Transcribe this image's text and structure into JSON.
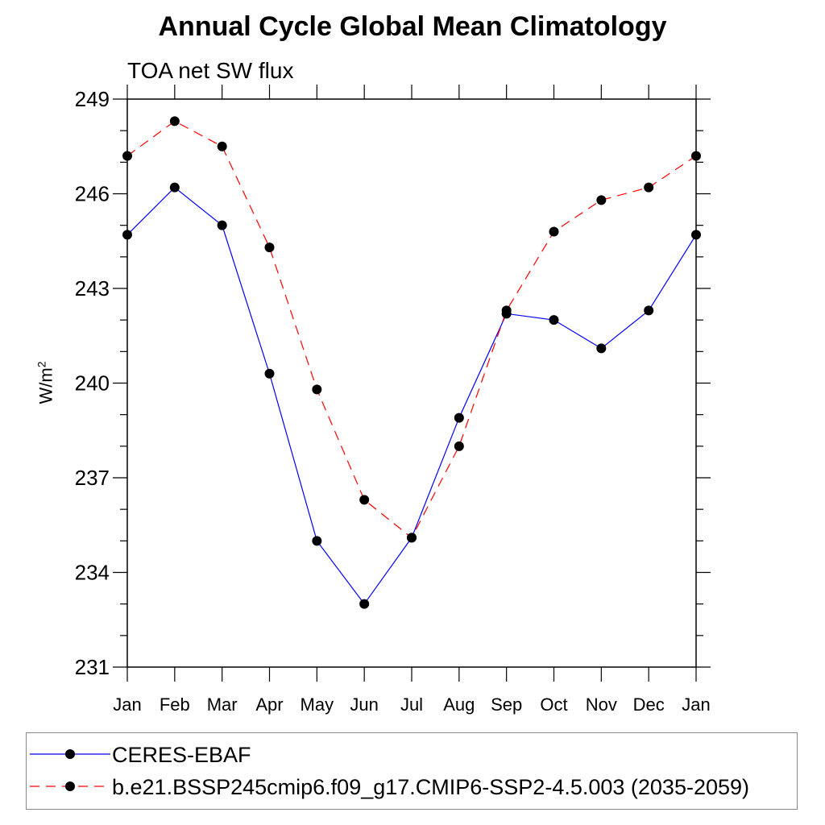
{
  "chart_data": {
    "type": "line",
    "title": "Annual Cycle Global Mean Climatology",
    "subtitle": "TOA net SW flux",
    "ylabel": "W/m",
    "ylabel_sup": "2",
    "xlabel": "",
    "ylim": [
      231,
      249
    ],
    "yticks": [
      231,
      234,
      237,
      240,
      243,
      246,
      249
    ],
    "categories": [
      "Jan",
      "Feb",
      "Mar",
      "Apr",
      "May",
      "Jun",
      "Jul",
      "Aug",
      "Sep",
      "Oct",
      "Nov",
      "Dec",
      "Jan"
    ],
    "series": [
      {
        "name": "CERES-EBAF",
        "color": "#0000ff",
        "dash": "solid",
        "values": [
          244.7,
          246.2,
          245.0,
          240.3,
          235.0,
          233.0,
          235.1,
          238.9,
          242.2,
          242.0,
          241.1,
          242.3,
          244.7
        ]
      },
      {
        "name": "b.e21.BSSP245cmip6.f09_g17.CMIP6-SSP2-4.5.003 (2035-2059)",
        "color": "#ff0000",
        "dash": "dashed",
        "values": [
          247.2,
          248.3,
          247.5,
          244.3,
          239.8,
          236.3,
          235.1,
          238.0,
          242.3,
          244.8,
          245.8,
          246.2,
          247.2
        ]
      }
    ],
    "grid": false,
    "legend_position": "bottom"
  }
}
